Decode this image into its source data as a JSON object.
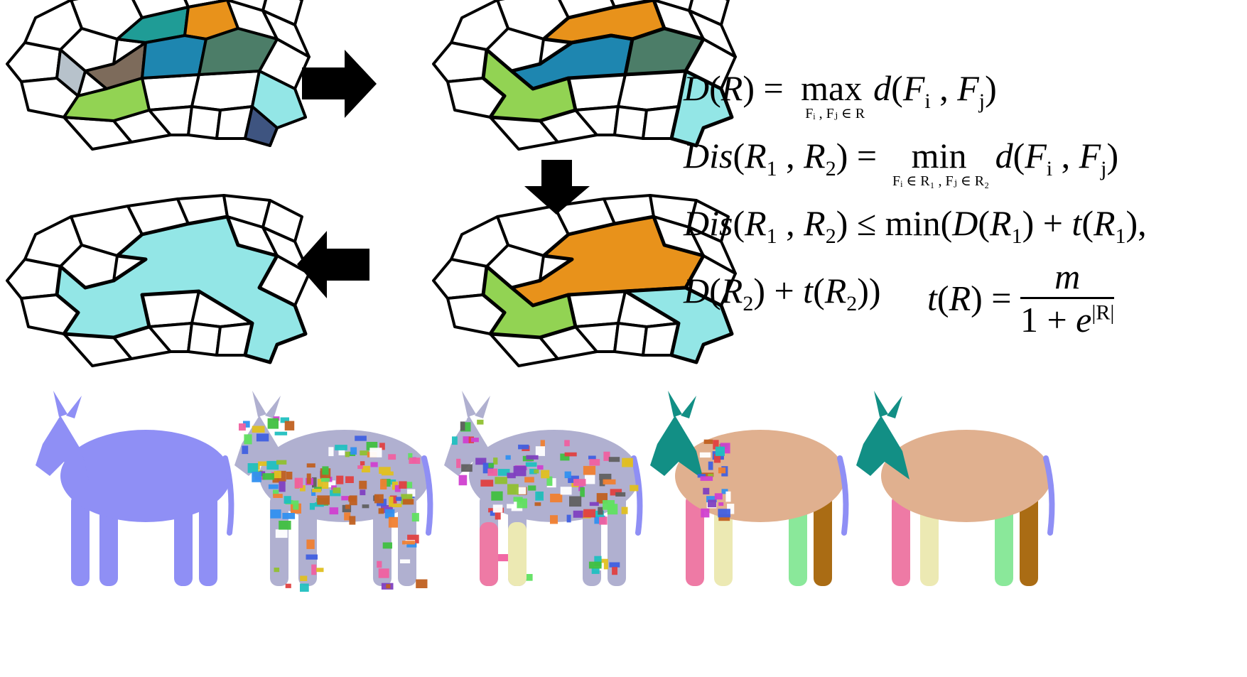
{
  "colors": {
    "teal": "#1f9c96",
    "orange": "#e8921b",
    "brown": "#7d6b5b",
    "gray": "#b7c2cb",
    "blue": "#1e86b0",
    "darkgreen": "#4c7d68",
    "cyan": "#93e6e6",
    "green": "#92d353",
    "navy": "#3e5480",
    "donkey_base": "#8f8ff5",
    "donkey_teal": "#128f85",
    "donkey_tan": "#e0b08f",
    "donkey_pink": "#ee7aa5",
    "donkey_cream": "#ece9b3",
    "donkey_lightgreen": "#8ae89a",
    "donkey_brown": "#aa6c14"
  },
  "panels": [
    {
      "name": "step-1",
      "regions": [
        "teal",
        "orange",
        "brown",
        "gray",
        "blue",
        "darkgreen",
        "cyan",
        "green",
        "navy"
      ]
    },
    {
      "name": "step-2",
      "regions": [
        "orange",
        "blue",
        "darkgreen",
        "green",
        "cyan"
      ]
    },
    {
      "name": "step-3",
      "regions": [
        "orange",
        "green",
        "cyan"
      ]
    },
    {
      "name": "step-4",
      "regions": [
        "cyan"
      ]
    }
  ],
  "arrows": [
    "right",
    "down",
    "left"
  ],
  "equations": {
    "eq1": {
      "lhs": "D(R) = ",
      "op": "max",
      "sub": "Fᵢ , Fⱼ ∈ R",
      "rhs": "d(Fᵢ , Fⱼ)"
    },
    "eq2": {
      "lhs": "Dis(R₁ , R₂) = ",
      "op": "min",
      "sub": "Fᵢ ∈ R₁ , Fⱼ ∈ R₂",
      "rhs": "d(Fᵢ , Fⱼ)"
    },
    "eq3": {
      "text": "Dis(R₁ , R₂) ≤ min(D(R₁) + t(R₁),"
    },
    "eq4": {
      "text": "D(R₂) + t(R₂))"
    },
    "eq5": {
      "lhs": "t(R) = ",
      "numerator": "m",
      "denominator": "1 + e",
      "exponent": "|R|"
    }
  },
  "donkeys": [
    {
      "name": "donkey-original",
      "style": "uniform"
    },
    {
      "name": "donkey-oversegmented",
      "style": "patches"
    },
    {
      "name": "donkey-merging",
      "style": "patches-partial"
    },
    {
      "name": "donkey-merged-near",
      "style": "parts-noisy"
    },
    {
      "name": "donkey-final",
      "style": "parts"
    }
  ]
}
